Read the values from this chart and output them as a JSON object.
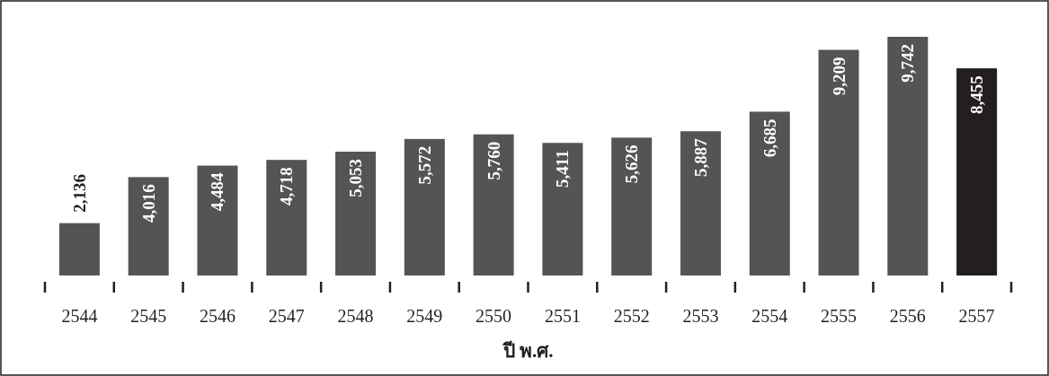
{
  "chart_data": {
    "type": "bar",
    "xlabel": "ปี พ.ศ.",
    "categories": [
      "2544",
      "2545",
      "2546",
      "2547",
      "2548",
      "2549",
      "2550",
      "2551",
      "2552",
      "2553",
      "2554",
      "2555",
      "2556",
      "2557"
    ],
    "values": [
      2136,
      4016,
      4484,
      4718,
      5053,
      5572,
      5760,
      5411,
      5626,
      5887,
      6685,
      9209,
      9742,
      8455
    ],
    "colors": [
      "#545454",
      "#545454",
      "#545454",
      "#545454",
      "#545454",
      "#545454",
      "#545454",
      "#545454",
      "#545454",
      "#545454",
      "#545454",
      "#545454",
      "#545454",
      "#231f20"
    ],
    "value_labels": [
      "2,136",
      "4,016",
      "4,484",
      "4,718",
      "5,053",
      "5,572",
      "5,760",
      "5,411",
      "5,626",
      "5,887",
      "6,685",
      "9,209",
      "9,742",
      "8,455"
    ]
  }
}
